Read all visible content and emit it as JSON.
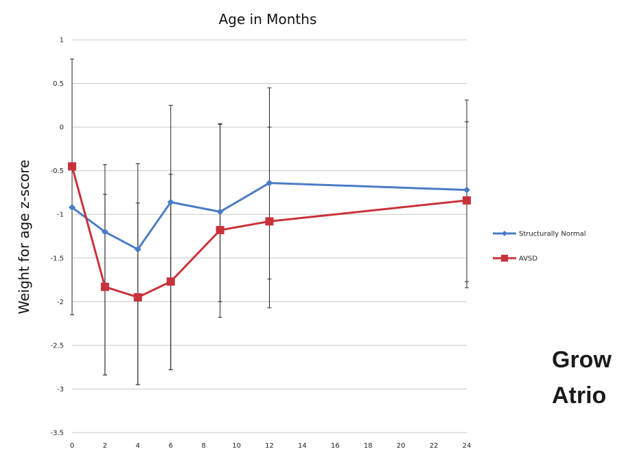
{
  "side_title": {
    "line1": "Grow",
    "line2": "Atrio"
  },
  "chart_data": {
    "type": "line",
    "title": "Age in Months",
    "xlabel": "",
    "ylabel": "Weight for age z-score",
    "x_ticks": [
      0,
      2,
      4,
      6,
      8,
      10,
      12,
      14,
      16,
      18,
      20,
      22,
      24
    ],
    "xlim": [
      0,
      24
    ],
    "ylim": [
      -3.5,
      1
    ],
    "y_ticks": [
      1,
      0.5,
      0,
      -0.5,
      -1,
      -1.5,
      -2,
      -2.5,
      -3,
      -3.5
    ],
    "grid": true,
    "legend_position": "right",
    "series": [
      {
        "name": "Structurally Normal",
        "color": "#4a7cc4",
        "marker": "diamond",
        "x": [
          0,
          2,
          4,
          6,
          9,
          12,
          24
        ],
        "y": [
          -0.92,
          -1.2,
          -1.4,
          -0.86,
          -0.97,
          -0.64,
          -0.72
        ],
        "err_low": [
          -2.15,
          -2.84,
          -2.95,
          -2.78,
          -2.18,
          -2.07,
          -1.84
        ],
        "err_high": [
          0.78,
          -0.43,
          -0.42,
          0.25,
          0.03,
          0.45,
          0.31
        ]
      },
      {
        "name": "AVSD",
        "color": "#c8323a",
        "marker": "square",
        "x": [
          0,
          2,
          4,
          6,
          9,
          12,
          24
        ],
        "y": [
          -0.45,
          -1.83,
          -1.95,
          -1.77,
          -1.18,
          -1.08,
          -0.84
        ],
        "err_low": [
          -0.45,
          -2.84,
          -2.95,
          -2.78,
          -2.0,
          -1.74,
          -1.77
        ],
        "err_high": [
          -0.45,
          -0.77,
          -0.87,
          -0.54,
          0.04,
          0.0,
          0.06
        ]
      }
    ]
  }
}
